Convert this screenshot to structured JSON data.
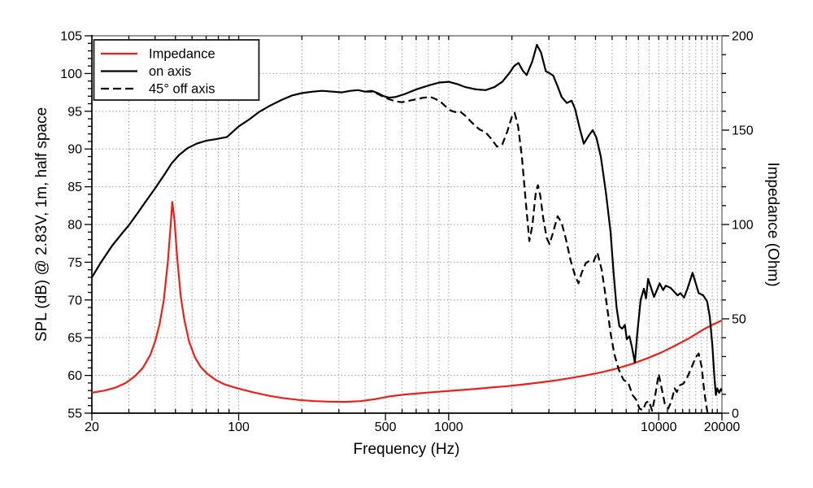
{
  "chart_data": {
    "type": "line",
    "title": "",
    "xlabel": "Frequency (Hz)",
    "ylabel_left": "SPL (dB) @ 2.83V, 1m, half space",
    "ylabel_right": "Impedance (Ohm)",
    "x_scale": "log",
    "xlim": [
      20,
      20000
    ],
    "ylim_left": [
      55,
      105
    ],
    "ylim_right": [
      0,
      200
    ],
    "grid": true,
    "legend_position": "upper-left",
    "x_major_ticks": [
      20,
      100,
      500,
      1000,
      10000,
      20000
    ],
    "x_major_tick_labels": [
      "20",
      "100",
      "500",
      "1000",
      "10000",
      "20000"
    ],
    "x_minor_ticks": [
      30,
      40,
      50,
      60,
      70,
      80,
      90,
      200,
      300,
      400,
      600,
      700,
      800,
      900,
      2000,
      3000,
      4000,
      5000,
      6000,
      7000,
      8000,
      9000,
      11000,
      12000,
      13000,
      14000,
      15000,
      16000,
      17000,
      18000,
      19000
    ],
    "y_left_major_ticks": [
      55,
      60,
      65,
      70,
      75,
      80,
      85,
      90,
      95,
      100,
      105
    ],
    "y_left_tick_labels": [
      "55",
      "60",
      "65",
      "70",
      "75",
      "80",
      "85",
      "90",
      "95",
      "100",
      "105"
    ],
    "y_left_minor_step": 1,
    "y_right_major_ticks": [
      0,
      50,
      100,
      150,
      200
    ],
    "y_right_tick_labels": [
      "0",
      "50",
      "100",
      "150",
      "200"
    ],
    "y_right_minor_step": 10,
    "y_grid_lines": [
      60,
      65,
      70,
      75,
      80,
      85,
      90,
      95,
      100
    ],
    "series": [
      {
        "name": "Impedance",
        "axis": "right",
        "color": "#ee1f17",
        "style": "solid",
        "points": [
          [
            20,
            10.8
          ],
          [
            23,
            12
          ],
          [
            26,
            13.6
          ],
          [
            29,
            16
          ],
          [
            32,
            19.5
          ],
          [
            35,
            24
          ],
          [
            38,
            31
          ],
          [
            40,
            38
          ],
          [
            42,
            47
          ],
          [
            44,
            60
          ],
          [
            46,
            80
          ],
          [
            47.5,
            100
          ],
          [
            48.3,
            112
          ],
          [
            49.5,
            102
          ],
          [
            51,
            82
          ],
          [
            53,
            62
          ],
          [
            55,
            50
          ],
          [
            58,
            38
          ],
          [
            62,
            29.5
          ],
          [
            66,
            24.5
          ],
          [
            71,
            20.8
          ],
          [
            78,
            17.5
          ],
          [
            86,
            15.2
          ],
          [
            95,
            13.7
          ],
          [
            105,
            12.4
          ],
          [
            120,
            10.8
          ],
          [
            140,
            9.2
          ],
          [
            165,
            7.9
          ],
          [
            195,
            7
          ],
          [
            230,
            6.4
          ],
          [
            270,
            6.1
          ],
          [
            320,
            6
          ],
          [
            380,
            6.4
          ],
          [
            450,
            7.5
          ],
          [
            530,
            9
          ],
          [
            620,
            9.9
          ],
          [
            720,
            10.5
          ],
          [
            840,
            11.1
          ],
          [
            980,
            11.7
          ],
          [
            1150,
            12.3
          ],
          [
            1350,
            12.9
          ],
          [
            1600,
            13.6
          ],
          [
            1900,
            14.3
          ],
          [
            2300,
            15.3
          ],
          [
            2700,
            16.2
          ],
          [
            3200,
            17.3
          ],
          [
            3800,
            18.6
          ],
          [
            4500,
            20
          ],
          [
            5300,
            21.6
          ],
          [
            6300,
            23.6
          ],
          [
            7500,
            26.2
          ],
          [
            8800,
            29
          ],
          [
            10300,
            32.2
          ],
          [
            12000,
            35.8
          ],
          [
            14000,
            39.8
          ],
          [
            16300,
            44.3
          ],
          [
            18000,
            46.8
          ],
          [
            20000,
            49.2
          ]
        ]
      },
      {
        "name": "on axis",
        "axis": "left",
        "color": "#000000",
        "style": "solid",
        "points": [
          [
            20,
            73
          ],
          [
            22,
            74.9
          ],
          [
            25,
            77.2
          ],
          [
            28,
            78.9
          ],
          [
            30,
            79.9
          ],
          [
            33,
            81.5
          ],
          [
            36,
            83
          ],
          [
            40,
            84.8
          ],
          [
            44,
            86.5
          ],
          [
            48,
            88.1
          ],
          [
            52,
            89.2
          ],
          [
            57,
            90.1
          ],
          [
            63,
            90.7
          ],
          [
            70,
            91.1
          ],
          [
            78,
            91.3
          ],
          [
            88,
            91.6
          ],
          [
            100,
            93
          ],
          [
            112,
            93.9
          ],
          [
            125,
            94.9
          ],
          [
            140,
            95.7
          ],
          [
            160,
            96.5
          ],
          [
            180,
            97.1
          ],
          [
            200,
            97.4
          ],
          [
            225,
            97.6
          ],
          [
            250,
            97.7
          ],
          [
            280,
            97.6
          ],
          [
            310,
            97.5
          ],
          [
            340,
            97.7
          ],
          [
            370,
            97.8
          ],
          [
            400,
            97.6
          ],
          [
            430,
            97.7
          ],
          [
            460,
            97.4
          ],
          [
            490,
            97
          ],
          [
            520,
            96.8
          ],
          [
            560,
            96.9
          ],
          [
            620,
            97.3
          ],
          [
            700,
            97.9
          ],
          [
            800,
            98.4
          ],
          [
            900,
            98.8
          ],
          [
            1000,
            98.9
          ],
          [
            1100,
            98.6
          ],
          [
            1200,
            98.2
          ],
          [
            1350,
            97.9
          ],
          [
            1500,
            97.8
          ],
          [
            1650,
            98.2
          ],
          [
            1800,
            98.9
          ],
          [
            1950,
            100.1
          ],
          [
            2050,
            101
          ],
          [
            2150,
            101.4
          ],
          [
            2250,
            100.4
          ],
          [
            2350,
            99.8
          ],
          [
            2500,
            101.6
          ],
          [
            2630,
            103.8
          ],
          [
            2750,
            102.8
          ],
          [
            2900,
            100.3
          ],
          [
            3000,
            100.1
          ],
          [
            3150,
            99.7
          ],
          [
            3300,
            98.3
          ],
          [
            3450,
            96.9
          ],
          [
            3650,
            96.1
          ],
          [
            3850,
            96.4
          ],
          [
            4000,
            95.3
          ],
          [
            4200,
            92.8
          ],
          [
            4400,
            90.7
          ],
          [
            4650,
            91.8
          ],
          [
            4850,
            92.5
          ],
          [
            5050,
            91.5
          ],
          [
            5300,
            89
          ],
          [
            5600,
            84.3
          ],
          [
            5900,
            79
          ],
          [
            6100,
            73.5
          ],
          [
            6300,
            69
          ],
          [
            6500,
            66.5
          ],
          [
            6700,
            66.2
          ],
          [
            6900,
            66.7
          ],
          [
            7050,
            64.8
          ],
          [
            7250,
            65.2
          ],
          [
            7450,
            63.8
          ],
          [
            7700,
            61.7
          ],
          [
            7900,
            65.5
          ],
          [
            8200,
            70
          ],
          [
            8500,
            71.5
          ],
          [
            8700,
            70.2
          ],
          [
            8900,
            72.8
          ],
          [
            9500,
            70.4
          ],
          [
            10100,
            72.2
          ],
          [
            10500,
            71.3
          ],
          [
            10800,
            71.9
          ],
          [
            11400,
            71.6
          ],
          [
            12300,
            70.6
          ],
          [
            12700,
            70.9
          ],
          [
            13200,
            70.3
          ],
          [
            13700,
            71.5
          ],
          [
            14500,
            73.6
          ],
          [
            15500,
            70.9
          ],
          [
            16300,
            70.6
          ],
          [
            17000,
            69.8
          ],
          [
            17500,
            67.8
          ],
          [
            18000,
            64
          ],
          [
            18400,
            60
          ],
          [
            18700,
            57.4
          ],
          [
            19000,
            58.3
          ],
          [
            19400,
            57.7
          ],
          [
            19800,
            58.2
          ],
          [
            20000,
            57.9
          ]
        ]
      },
      {
        "name": "45° off axis",
        "axis": "left",
        "color": "#000000",
        "style": "dashed",
        "points": [
          [
            400,
            97.6
          ],
          [
            430,
            97.6
          ],
          [
            460,
            97.3
          ],
          [
            490,
            96.9
          ],
          [
            520,
            96.6
          ],
          [
            560,
            96.3
          ],
          [
            600,
            96.2
          ],
          [
            650,
            96.4
          ],
          [
            700,
            96.6
          ],
          [
            760,
            96.8
          ],
          [
            820,
            96.9
          ],
          [
            870,
            96.6
          ],
          [
            920,
            96.2
          ],
          [
            970,
            95.6
          ],
          [
            1020,
            95.1
          ],
          [
            1070,
            94.9
          ],
          [
            1130,
            95
          ],
          [
            1200,
            94.4
          ],
          [
            1300,
            93.4
          ],
          [
            1400,
            92.6
          ],
          [
            1500,
            92.2
          ],
          [
            1600,
            91.3
          ],
          [
            1700,
            90.3
          ],
          [
            1800,
            90.6
          ],
          [
            1900,
            92.3
          ],
          [
            2000,
            94.3
          ],
          [
            2060,
            94.8
          ],
          [
            2140,
            93
          ],
          [
            2230,
            89
          ],
          [
            2320,
            83.5
          ],
          [
            2420,
            77.8
          ],
          [
            2500,
            79.8
          ],
          [
            2600,
            84.3
          ],
          [
            2660,
            85.2
          ],
          [
            2730,
            83.8
          ],
          [
            2820,
            80.8
          ],
          [
            2930,
            78.2
          ],
          [
            3020,
            77.4
          ],
          [
            3130,
            78.8
          ],
          [
            3300,
            81.1
          ],
          [
            3450,
            80.2
          ],
          [
            3600,
            78.3
          ],
          [
            3800,
            75.3
          ],
          [
            4000,
            73.2
          ],
          [
            4150,
            72.2
          ],
          [
            4300,
            73.6
          ],
          [
            4500,
            74.9
          ],
          [
            4700,
            75.2
          ],
          [
            4900,
            75.1
          ],
          [
            5100,
            76.3
          ],
          [
            5350,
            74
          ],
          [
            5600,
            70.3
          ],
          [
            5900,
            65.6
          ],
          [
            6150,
            62.8
          ],
          [
            6450,
            60.8
          ],
          [
            6800,
            59.4
          ],
          [
            7150,
            59.1
          ],
          [
            7500,
            57.4
          ],
          [
            7800,
            56.8
          ],
          [
            8100,
            55.6
          ],
          [
            8400,
            55.4
          ],
          [
            8700,
            56.4
          ],
          [
            9000,
            56.6
          ],
          [
            9300,
            55.3
          ],
          [
            9600,
            57.2
          ],
          [
            10000,
            60.2
          ],
          [
            10300,
            58.4
          ],
          [
            10700,
            56.2
          ],
          [
            11100,
            55.6
          ],
          [
            11500,
            56.6
          ],
          [
            11900,
            58.3
          ],
          [
            12200,
            57.8
          ],
          [
            12600,
            58.7
          ],
          [
            13100,
            58.9
          ],
          [
            13600,
            59.6
          ],
          [
            14300,
            61
          ],
          [
            15000,
            62.4
          ],
          [
            15500,
            62.9
          ],
          [
            16000,
            61.2
          ],
          [
            16500,
            57.7
          ],
          [
            16900,
            55.8
          ],
          [
            17200,
            54.5
          ]
        ]
      }
    ]
  },
  "colors": {
    "background": "#ffffff",
    "axis": "#000000",
    "frame": "#8a8a8a",
    "grid": "#999999",
    "impedance_red": "#ee1f17"
  }
}
